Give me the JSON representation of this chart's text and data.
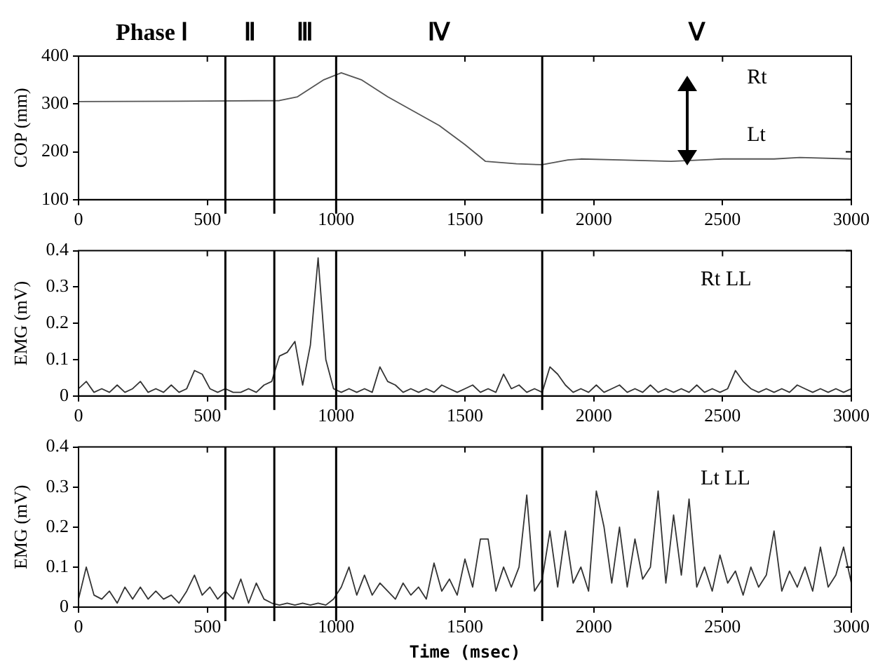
{
  "chart_data": [
    {
      "type": "line",
      "ylabel": "COP (mm)",
      "grid": false,
      "legend": false,
      "marker": "none",
      "annotations": [
        "Phase Ⅰ",
        "Ⅱ",
        "Ⅲ",
        "Ⅳ",
        "Ⅴ",
        "Rt",
        "Lt"
      ],
      "x": [
        0,
        500,
        780,
        850,
        950,
        1020,
        1100,
        1200,
        1300,
        1400,
        1500,
        1580,
        1700,
        1800,
        1900,
        1950,
        2100,
        2300,
        2500,
        2700,
        2800,
        3000
      ],
      "series": [
        {
          "color": "#555555",
          "values": [
            305,
            306,
            307,
            315,
            350,
            365,
            350,
            315,
            285,
            255,
            215,
            180,
            175,
            173,
            183,
            185,
            183,
            180,
            185,
            185,
            188,
            185
          ]
        }
      ],
      "xlim": [
        0,
        3000
      ],
      "xticks": [
        0,
        500,
        1000,
        1500,
        2000,
        2500,
        3000
      ],
      "ylim": [
        100,
        400
      ],
      "yticks": [
        100,
        200,
        300,
        400
      ],
      "ref_lines": [
        {
          "axis": "x",
          "value": 570,
          "color": "#000000"
        },
        {
          "axis": "x",
          "value": 760,
          "color": "#000000"
        },
        {
          "axis": "x",
          "value": 1000,
          "color": "#000000"
        },
        {
          "axis": "x",
          "value": 1800,
          "color": "#000000"
        }
      ]
    },
    {
      "type": "line",
      "ylabel": "EMG (mV)",
      "grid": false,
      "legend": false,
      "marker": "none",
      "annotations": [
        "Rt LL"
      ],
      "x": [
        0,
        30,
        60,
        90,
        120,
        150,
        180,
        210,
        240,
        270,
        300,
        330,
        360,
        390,
        420,
        450,
        480,
        510,
        540,
        570,
        600,
        630,
        660,
        690,
        720,
        750,
        780,
        810,
        840,
        870,
        900,
        930,
        960,
        990,
        1020,
        1050,
        1080,
        1110,
        1140,
        1170,
        1200,
        1230,
        1260,
        1290,
        1320,
        1350,
        1380,
        1410,
        1440,
        1470,
        1500,
        1530,
        1560,
        1590,
        1620,
        1650,
        1680,
        1710,
        1740,
        1770,
        1800,
        1830,
        1860,
        1890,
        1920,
        1950,
        1980,
        2010,
        2040,
        2070,
        2100,
        2130,
        2160,
        2190,
        2220,
        2250,
        2280,
        2310,
        2340,
        2370,
        2400,
        2430,
        2460,
        2490,
        2520,
        2550,
        2580,
        2610,
        2640,
        2670,
        2700,
        2730,
        2760,
        2790,
        2820,
        2850,
        2880,
        2910,
        2940,
        2970,
        3000
      ],
      "series": [
        {
          "color": "#333333",
          "values": [
            0.02,
            0.04,
            0.01,
            0.02,
            0.01,
            0.03,
            0.01,
            0.02,
            0.04,
            0.01,
            0.02,
            0.01,
            0.03,
            0.01,
            0.02,
            0.07,
            0.06,
            0.02,
            0.01,
            0.02,
            0.01,
            0.01,
            0.02,
            0.01,
            0.03,
            0.04,
            0.11,
            0.12,
            0.15,
            0.03,
            0.14,
            0.38,
            0.1,
            0.02,
            0.01,
            0.02,
            0.01,
            0.02,
            0.01,
            0.08,
            0.04,
            0.03,
            0.01,
            0.02,
            0.01,
            0.02,
            0.01,
            0.03,
            0.02,
            0.01,
            0.02,
            0.03,
            0.01,
            0.02,
            0.01,
            0.06,
            0.02,
            0.03,
            0.01,
            0.02,
            0.01,
            0.08,
            0.06,
            0.03,
            0.01,
            0.02,
            0.01,
            0.03,
            0.01,
            0.02,
            0.03,
            0.01,
            0.02,
            0.01,
            0.03,
            0.01,
            0.02,
            0.01,
            0.02,
            0.01,
            0.03,
            0.01,
            0.02,
            0.01,
            0.02,
            0.07,
            0.04,
            0.02,
            0.01,
            0.02,
            0.01,
            0.02,
            0.01,
            0.03,
            0.02,
            0.01,
            0.02,
            0.01,
            0.02,
            0.01,
            0.02
          ]
        }
      ],
      "xlim": [
        0,
        3000
      ],
      "xticks": [
        0,
        500,
        1000,
        1500,
        2000,
        2500,
        3000
      ],
      "ylim": [
        0,
        0.4
      ],
      "yticks": [
        0,
        0.1,
        0.2,
        0.3,
        0.4
      ],
      "ref_lines": [
        {
          "axis": "x",
          "value": 570,
          "color": "#000000"
        },
        {
          "axis": "x",
          "value": 760,
          "color": "#000000"
        },
        {
          "axis": "x",
          "value": 1000,
          "color": "#000000"
        },
        {
          "axis": "x",
          "value": 1800,
          "color": "#000000"
        }
      ]
    },
    {
      "type": "line",
      "xlabel": "Time (msec)",
      "ylabel": "EMG (mV)",
      "grid": false,
      "legend": false,
      "marker": "none",
      "annotations": [
        "Lt LL"
      ],
      "x": [
        0,
        30,
        60,
        90,
        120,
        150,
        180,
        210,
        240,
        270,
        300,
        330,
        360,
        390,
        420,
        450,
        480,
        510,
        540,
        570,
        600,
        630,
        660,
        690,
        720,
        750,
        780,
        810,
        840,
        870,
        900,
        930,
        960,
        990,
        1020,
        1050,
        1080,
        1110,
        1140,
        1170,
        1200,
        1230,
        1260,
        1290,
        1320,
        1350,
        1380,
        1410,
        1440,
        1470,
        1500,
        1530,
        1560,
        1590,
        1620,
        1650,
        1680,
        1710,
        1740,
        1770,
        1800,
        1830,
        1860,
        1890,
        1920,
        1950,
        1980,
        2010,
        2040,
        2070,
        2100,
        2130,
        2160,
        2190,
        2220,
        2250,
        2280,
        2310,
        2340,
        2370,
        2400,
        2430,
        2460,
        2490,
        2520,
        2550,
        2580,
        2610,
        2640,
        2670,
        2700,
        2730,
        2760,
        2790,
        2820,
        2850,
        2880,
        2910,
        2940,
        2970,
        3000
      ],
      "series": [
        {
          "color": "#333333",
          "values": [
            0.02,
            0.1,
            0.03,
            0.02,
            0.04,
            0.01,
            0.05,
            0.02,
            0.05,
            0.02,
            0.04,
            0.02,
            0.03,
            0.01,
            0.04,
            0.08,
            0.03,
            0.05,
            0.02,
            0.04,
            0.02,
            0.07,
            0.01,
            0.06,
            0.02,
            0.01,
            0.005,
            0.01,
            0.005,
            0.01,
            0.005,
            0.01,
            0.005,
            0.02,
            0.05,
            0.1,
            0.03,
            0.08,
            0.03,
            0.06,
            0.04,
            0.02,
            0.06,
            0.03,
            0.05,
            0.02,
            0.11,
            0.04,
            0.07,
            0.03,
            0.12,
            0.05,
            0.17,
            0.17,
            0.04,
            0.1,
            0.05,
            0.1,
            0.28,
            0.04,
            0.07,
            0.19,
            0.05,
            0.19,
            0.06,
            0.1,
            0.04,
            0.29,
            0.2,
            0.06,
            0.2,
            0.05,
            0.17,
            0.07,
            0.1,
            0.29,
            0.06,
            0.23,
            0.08,
            0.27,
            0.05,
            0.1,
            0.04,
            0.13,
            0.06,
            0.09,
            0.03,
            0.1,
            0.05,
            0.08,
            0.19,
            0.04,
            0.09,
            0.05,
            0.1,
            0.04,
            0.15,
            0.05,
            0.08,
            0.15,
            0.06
          ]
        }
      ],
      "xlim": [
        0,
        3000
      ],
      "xticks": [
        0,
        500,
        1000,
        1500,
        2000,
        2500,
        3000
      ],
      "ylim": [
        0,
        0.4
      ],
      "yticks": [
        0,
        0.1,
        0.2,
        0.3,
        0.4
      ],
      "ref_lines": [
        {
          "axis": "x",
          "value": 570,
          "color": "#000000"
        },
        {
          "axis": "x",
          "value": 760,
          "color": "#000000"
        },
        {
          "axis": "x",
          "value": 1000,
          "color": "#000000"
        },
        {
          "axis": "x",
          "value": 1800,
          "color": "#000000"
        }
      ]
    }
  ]
}
